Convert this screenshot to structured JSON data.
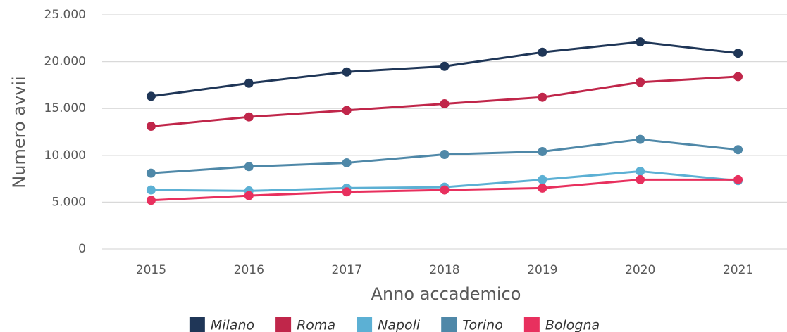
{
  "chart_data": {
    "type": "line",
    "xlabel": "Anno accademico",
    "ylabel": "Numero avvii",
    "categories": [
      "2015",
      "2016",
      "2017",
      "2018",
      "2019",
      "2020",
      "2021"
    ],
    "series": [
      {
        "name": "Milano",
        "color": "#1f3657",
        "values": [
          16300,
          17700,
          18900,
          19500,
          21000,
          22100,
          20900
        ]
      },
      {
        "name": "Roma",
        "color": "#c0264a",
        "values": [
          13100,
          14100,
          14800,
          15500,
          16200,
          17800,
          18400
        ]
      },
      {
        "name": "Napoli",
        "color": "#5cb0d4",
        "values": [
          6300,
          6200,
          6500,
          6600,
          7400,
          8300,
          7300
        ]
      },
      {
        "name": "Torino",
        "color": "#4f88a8",
        "values": [
          8100,
          8800,
          9200,
          10100,
          10400,
          11700,
          10600
        ]
      },
      {
        "name": "Bologna",
        "color": "#e8305e",
        "values": [
          5200,
          5700,
          6100,
          6300,
          6500,
          7400,
          7400
        ]
      }
    ],
    "ylim": [
      0,
      25000
    ],
    "yticks": [
      0,
      {
        "value": 5000,
        "label": "5.000"
      },
      {
        "value": 10000,
        "label": "10.000"
      },
      {
        "value": 15000,
        "label": "15.000"
      },
      {
        "value": 20000,
        "label": "20.000"
      },
      {
        "value": 25000,
        "label": "25.000"
      }
    ],
    "grid": true,
    "legend": "bottom"
  }
}
